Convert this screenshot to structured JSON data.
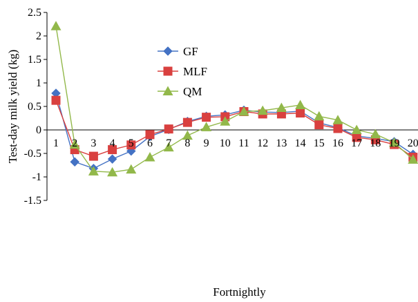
{
  "chart_data": {
    "type": "line",
    "title": "",
    "xlabel": "Fortnightly",
    "ylabel": "Test-day milk yield (kg)",
    "ylim": [
      -1.5,
      2.5
    ],
    "yticks": [
      "-1.5",
      "-1",
      "-0.5",
      "0",
      "0.5",
      "1",
      "1.5",
      "2",
      "2.5"
    ],
    "categories": [
      "1",
      "2",
      "3",
      "4",
      "5",
      "6",
      "7",
      "8",
      "9",
      "10",
      "11",
      "12",
      "13",
      "14",
      "15",
      "16",
      "17",
      "18",
      "19",
      "20"
    ],
    "grid": false,
    "legend_position": "upper-center-left",
    "series": [
      {
        "name": "GF",
        "marker": "diamond",
        "color": "#4472C4",
        "values": [
          0.78,
          -0.68,
          -0.82,
          -0.62,
          -0.45,
          -0.14,
          0.01,
          0.18,
          0.29,
          0.32,
          0.42,
          0.38,
          0.37,
          0.4,
          0.15,
          0.05,
          -0.13,
          -0.18,
          -0.25,
          -0.52
        ]
      },
      {
        "name": "MLF",
        "marker": "square",
        "color": "#D9403F",
        "values": [
          0.63,
          -0.42,
          -0.56,
          -0.42,
          -0.32,
          -0.1,
          0.02,
          0.16,
          0.27,
          0.28,
          0.39,
          0.34,
          0.34,
          0.36,
          0.11,
          0.03,
          -0.16,
          -0.21,
          -0.31,
          -0.58
        ]
      },
      {
        "name": "QM",
        "marker": "triangle",
        "color": "#92B84A",
        "values": [
          2.21,
          -0.31,
          -0.88,
          -0.9,
          -0.84,
          -0.58,
          -0.37,
          -0.12,
          0.06,
          0.18,
          0.39,
          0.41,
          0.47,
          0.53,
          0.29,
          0.21,
          0.0,
          -0.09,
          -0.27,
          -0.63
        ]
      }
    ]
  }
}
